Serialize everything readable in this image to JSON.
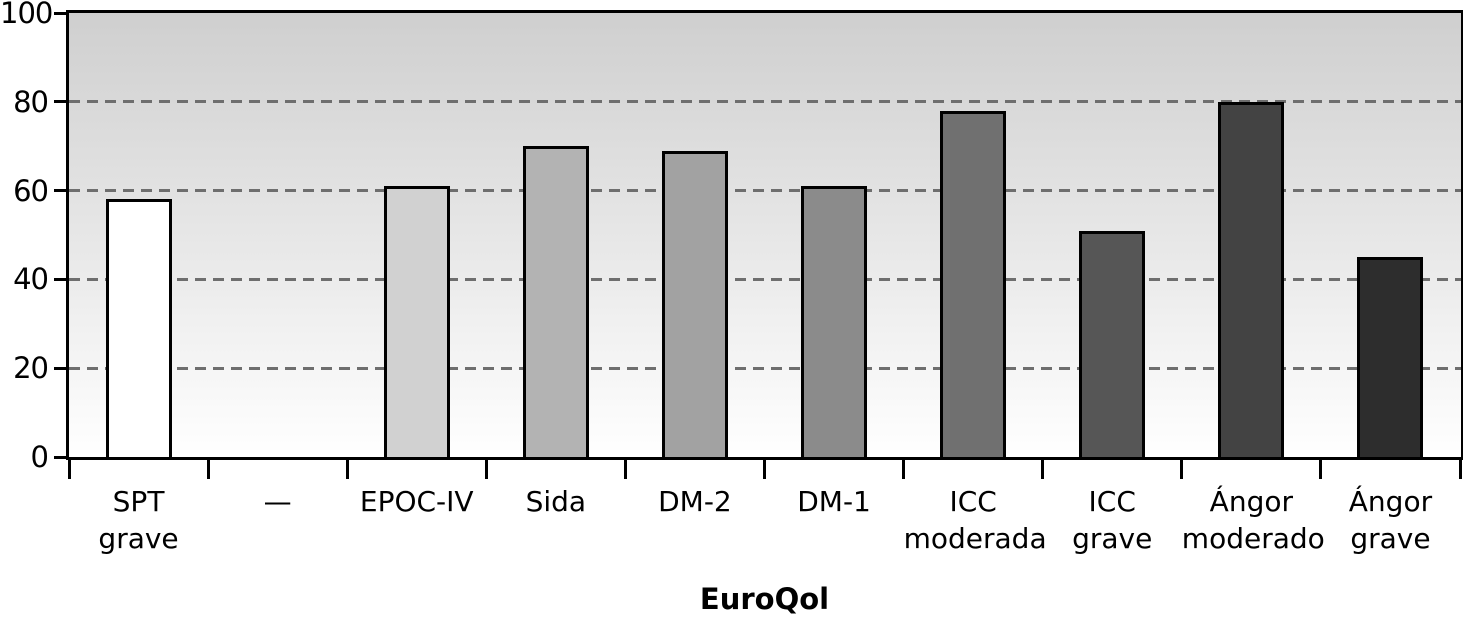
{
  "chart_data": {
    "type": "bar",
    "title": "",
    "xlabel": "EuroQol",
    "ylabel": "",
    "ylim": [
      0,
      100
    ],
    "yticks": [
      0,
      20,
      40,
      60,
      80,
      100
    ],
    "gridlines": [
      20,
      40,
      60,
      80
    ],
    "grid": "dashed-horizontal",
    "legend_position": "none",
    "categories": [
      "SPT grave",
      "—",
      "EPOC-IV",
      "Sida",
      "DM-2",
      "DM-1",
      "ICC moderada",
      "ICC grave",
      "Ángor moderado",
      "Ángor grave"
    ],
    "category_lines": [
      [
        "SPT",
        "grave"
      ],
      [
        "—"
      ],
      [
        "EPOC-IV"
      ],
      [
        "Sida"
      ],
      [
        "DM-2"
      ],
      [
        "DM-1"
      ],
      [
        "ICC",
        "moderada"
      ],
      [
        "ICC",
        "grave"
      ],
      [
        "Ángor",
        "moderado"
      ],
      [
        "Ángor",
        "grave"
      ]
    ],
    "values": [
      58,
      null,
      61,
      70,
      69,
      61,
      78,
      51,
      80,
      45
    ],
    "bar_colors": [
      "#ffffff",
      null,
      "#d1d1d1",
      "#b3b3b3",
      "#a2a2a2",
      "#8b8b8b",
      "#707070",
      "#565656",
      "#434343",
      "#2d2d2d"
    ],
    "bar_border_color": "#000000",
    "axis_color": "#000000",
    "gridline_color": "#6e6e6e",
    "plot_bg_top": "#cfcfcf",
    "plot_bg_bottom": "#ffffff"
  }
}
